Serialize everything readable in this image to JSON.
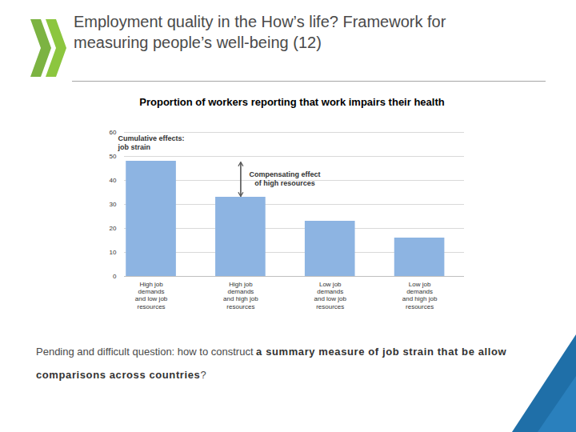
{
  "slide": {
    "heading": [
      "Employment quality in the How’s life? Framework for",
      "measuring people’s well-being (12)"
    ],
    "note": [
      {
        "text": "Pending and difficult question: how to construct ",
        "bold": false
      },
      {
        "text": "a summary measure of job strain that be allow comparisons across countries",
        "bold": true
      },
      {
        "text": "?",
        "bold": false
      }
    ]
  },
  "chart_data": {
    "type": "bar",
    "title": "Proportion of workers reporting that work impairs their health",
    "categories": [
      "High job\ndemands\nand low job\nresources",
      "High job\ndemands\nand high job\nresources",
      "Low job\ndemands\nand low job\nresources",
      "Low job\ndemands\nand high job\nresources"
    ],
    "values": [
      48,
      33,
      23,
      16
    ],
    "color": "#8db4e2",
    "ylim": [
      0,
      60
    ],
    "yticks": [
      0,
      10,
      20,
      30,
      40,
      50,
      60
    ],
    "grid": true,
    "annotations": [
      "Cumulative effects:\njob strain",
      "Compensating effect\nof high resources"
    ]
  }
}
